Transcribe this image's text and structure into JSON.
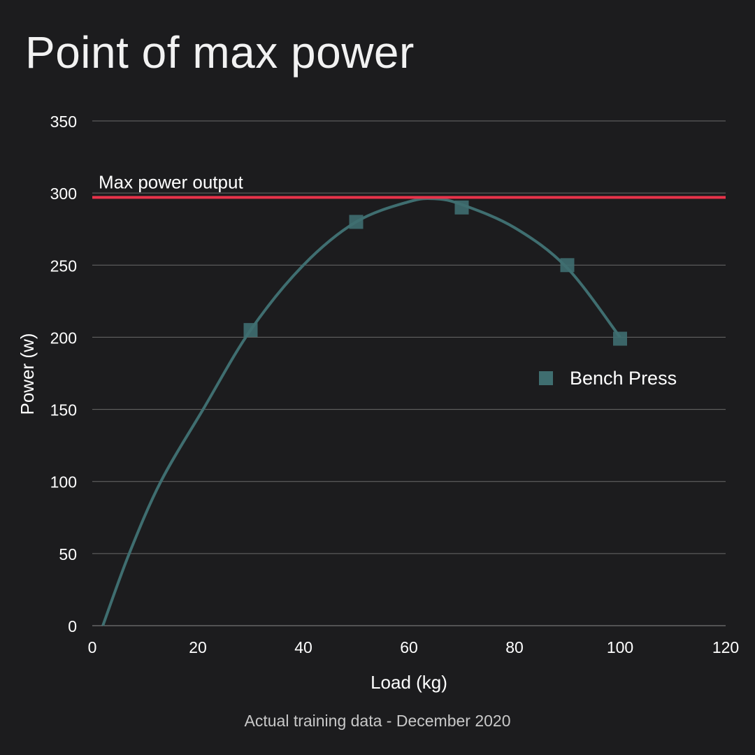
{
  "chart_data": {
    "type": "scatter",
    "title": "Point of max power",
    "xlabel": "Load (kg)",
    "ylabel": "Power (w)",
    "caption": "Actual training data - December 2020",
    "xlim": [
      0,
      120
    ],
    "ylim": [
      0,
      350
    ],
    "x_ticks": [
      0,
      20,
      40,
      60,
      80,
      100,
      120
    ],
    "y_ticks": [
      0,
      50,
      100,
      150,
      200,
      250,
      300,
      350
    ],
    "grid": "horizontal",
    "legend_position": "right",
    "series": [
      {
        "name": "Bench Press",
        "color": "#3f6e70",
        "marker": "square",
        "points": [
          {
            "x": 30,
            "y": 205
          },
          {
            "x": 50,
            "y": 280
          },
          {
            "x": 70,
            "y": 290
          },
          {
            "x": 90,
            "y": 250
          },
          {
            "x": 100,
            "y": 199
          }
        ]
      }
    ],
    "trend_curve": {
      "color": "#3f6e70",
      "points": [
        {
          "x": 2,
          "y": 0
        },
        {
          "x": 7,
          "y": 50
        },
        {
          "x": 13,
          "y": 100
        },
        {
          "x": 21,
          "y": 150
        },
        {
          "x": 30,
          "y": 205
        },
        {
          "x": 40,
          "y": 250
        },
        {
          "x": 50,
          "y": 280
        },
        {
          "x": 60,
          "y": 294
        },
        {
          "x": 65,
          "y": 296
        },
        {
          "x": 70,
          "y": 292
        },
        {
          "x": 80,
          "y": 276
        },
        {
          "x": 90,
          "y": 248
        },
        {
          "x": 100,
          "y": 200
        }
      ]
    },
    "reference_line": {
      "label": "Max power output",
      "y": 297,
      "color": "#e8334a"
    }
  }
}
